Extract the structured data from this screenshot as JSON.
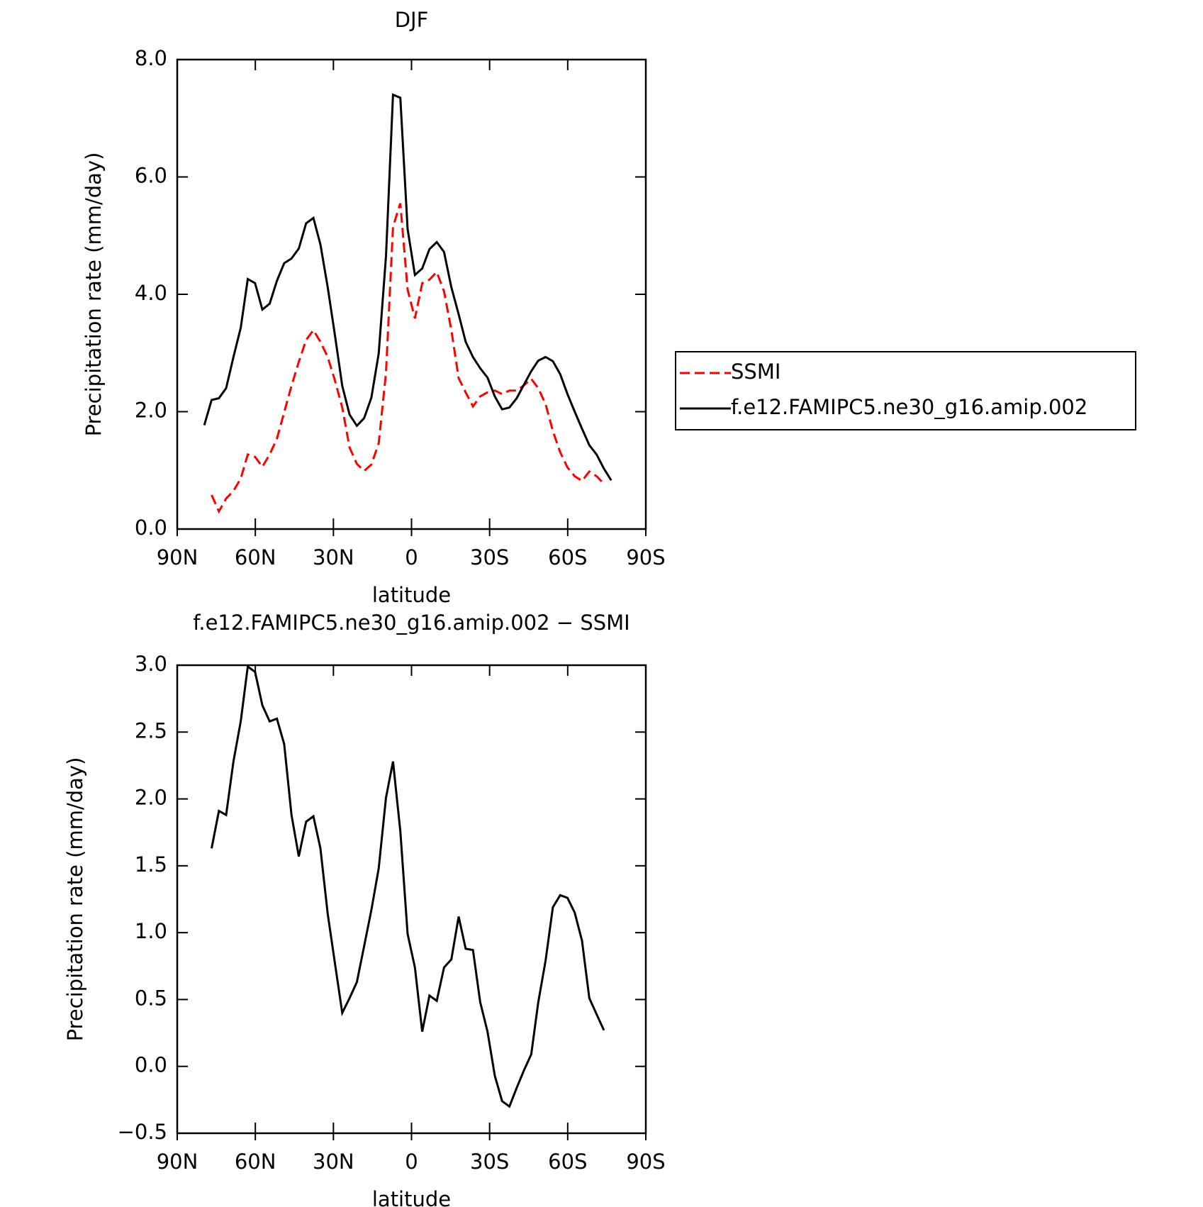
{
  "chart_data": [
    {
      "type": "line",
      "title": "DJF",
      "xlabel": "latitude",
      "ylabel": "Precipitation rate (mm/day)",
      "x": [
        79.6,
        76.8,
        74.0,
        71.2,
        68.4,
        65.6,
        62.9,
        60.1,
        57.3,
        54.5,
        51.7,
        48.9,
        46.1,
        43.3,
        40.5,
        37.7,
        35.0,
        32.2,
        29.4,
        26.6,
        23.8,
        21.0,
        18.2,
        15.4,
        12.6,
        9.8,
        7.1,
        4.3,
        1.5,
        -1.3,
        -4.1,
        -6.9,
        -9.7,
        -12.5,
        -15.3,
        -18.1,
        -20.8,
        -23.6,
        -26.4,
        -29.2,
        -32.0,
        -34.8,
        -37.6,
        -40.4,
        -43.2,
        -46.0,
        -48.7,
        -51.5,
        -54.3,
        -57.1,
        -59.9,
        -62.7,
        -65.5,
        -68.3,
        -71.1,
        -73.9,
        -76.7
      ],
      "series": [
        {
          "name": "SSMI",
          "color": "#ff0000",
          "style": "dashed",
          "values": [
            null,
            0.58,
            0.3,
            0.52,
            0.65,
            0.86,
            1.27,
            1.23,
            1.06,
            1.27,
            1.54,
            1.99,
            2.44,
            2.85,
            3.22,
            3.39,
            3.19,
            2.93,
            2.53,
            2.07,
            1.39,
            1.11,
            0.99,
            1.1,
            1.46,
            2.66,
            5.15,
            5.55,
            4.08,
            3.59,
            4.19,
            4.25,
            4.38,
            4.05,
            3.39,
            2.57,
            2.33,
            2.09,
            2.26,
            2.33,
            2.36,
            2.3,
            2.36,
            2.36,
            2.45,
            2.56,
            2.4,
            2.13,
            1.67,
            1.31,
            1.05,
            0.9,
            0.82,
            0.98,
            0.9,
            0.77,
            null
          ]
        },
        {
          "name": "f.e12.FAMIPC5.ne30_g16.amip.002",
          "color": "#000000",
          "style": "solid",
          "values": [
            1.77,
            2.2,
            2.23,
            2.4,
            2.93,
            3.43,
            4.26,
            4.19,
            3.74,
            3.84,
            4.23,
            4.53,
            4.61,
            4.78,
            5.21,
            5.3,
            4.85,
            4.12,
            3.3,
            2.44,
            1.95,
            1.76,
            1.89,
            2.24,
            2.99,
            4.65,
            7.4,
            7.35,
            5.11,
            4.33,
            4.44,
            4.77,
            4.89,
            4.72,
            4.12,
            3.66,
            3.19,
            2.93,
            2.74,
            2.58,
            2.26,
            2.04,
            2.07,
            2.23,
            2.46,
            2.69,
            2.87,
            2.93,
            2.86,
            2.64,
            2.3,
            2.0,
            1.71,
            1.43,
            1.27,
            1.03,
            0.83
          ]
        }
      ],
      "xlim": [
        90,
        -90
      ],
      "xticks": [
        {
          "value": 90,
          "label": "90N"
        },
        {
          "value": 60,
          "label": "60N"
        },
        {
          "value": 30,
          "label": "30N"
        },
        0,
        {
          "value": -30,
          "label": "30S"
        },
        {
          "value": -60,
          "label": "60S"
        },
        {
          "value": -90,
          "label": "90S"
        }
      ],
      "ylim": [
        0,
        8
      ],
      "yticks": [
        {
          "value": 0,
          "label": "0.0"
        },
        {
          "value": 2,
          "label": "2.0"
        },
        {
          "value": 4,
          "label": "4.0"
        },
        {
          "value": 6,
          "label": "6.0"
        },
        {
          "value": 8,
          "label": "8.0"
        }
      ],
      "legend": "right"
    },
    {
      "type": "line",
      "title": "f.e12.FAMIPC5.ne30_g16.amip.002 − SSMI",
      "xlabel": "latitude",
      "ylabel": "Precipitation rate (mm/day)",
      "x": [
        79.6,
        76.8,
        74.0,
        71.2,
        68.4,
        65.6,
        62.9,
        60.1,
        57.3,
        54.5,
        51.7,
        48.9,
        46.1,
        43.3,
        40.5,
        37.7,
        35.0,
        32.2,
        29.4,
        26.6,
        23.8,
        21.0,
        18.2,
        15.4,
        12.6,
        9.8,
        7.1,
        4.3,
        1.5,
        -1.3,
        -4.1,
        -6.9,
        -9.7,
        -12.5,
        -15.3,
        -18.1,
        -20.8,
        -23.6,
        -26.4,
        -29.2,
        -32.0,
        -34.8,
        -37.6,
        -40.4,
        -43.2,
        -46.0,
        -48.7,
        -51.5,
        -54.3,
        -57.1,
        -59.9,
        -62.7,
        -65.5,
        -68.3,
        -71.1,
        -73.9,
        -76.7
      ],
      "series": [
        {
          "color": "#000000",
          "style": "solid",
          "values": [
            null,
            1.63,
            1.91,
            1.88,
            2.28,
            2.58,
            2.99,
            2.95,
            2.7,
            2.58,
            2.6,
            2.41,
            1.88,
            1.57,
            1.83,
            1.87,
            1.63,
            1.14,
            0.77,
            0.4,
            0.51,
            0.63,
            0.9,
            1.17,
            1.48,
            2.01,
            2.28,
            1.76,
            0.99,
            0.74,
            0.26,
            0.53,
            0.49,
            0.74,
            0.8,
            1.12,
            0.88,
            0.87,
            0.48,
            0.26,
            -0.07,
            -0.26,
            -0.3,
            -0.16,
            -0.03,
            0.09,
            0.48,
            0.79,
            1.19,
            1.28,
            1.26,
            1.15,
            0.94,
            0.51,
            0.39,
            0.27,
            null
          ]
        }
      ],
      "xlim": [
        90,
        -90
      ],
      "xticks": [
        {
          "value": 90,
          "label": "90N"
        },
        {
          "value": 60,
          "label": "60N"
        },
        {
          "value": 30,
          "label": "30N"
        },
        0,
        {
          "value": -30,
          "label": "30S"
        },
        {
          "value": -60,
          "label": "60S"
        },
        {
          "value": -90,
          "label": "90S"
        }
      ],
      "ylim": [
        -0.5,
        3.0
      ],
      "yticks": [
        {
          "value": -0.5,
          "label": "−0.5"
        },
        {
          "value": 0,
          "label": "0.0"
        },
        {
          "value": 0.5,
          "label": "0.5"
        },
        {
          "value": 1,
          "label": "1.0"
        },
        {
          "value": 1.5,
          "label": "1.5"
        },
        {
          "value": 2,
          "label": "2.0"
        },
        {
          "value": 2.5,
          "label": "2.5"
        },
        {
          "value": 3,
          "label": "3.0"
        }
      ]
    }
  ]
}
